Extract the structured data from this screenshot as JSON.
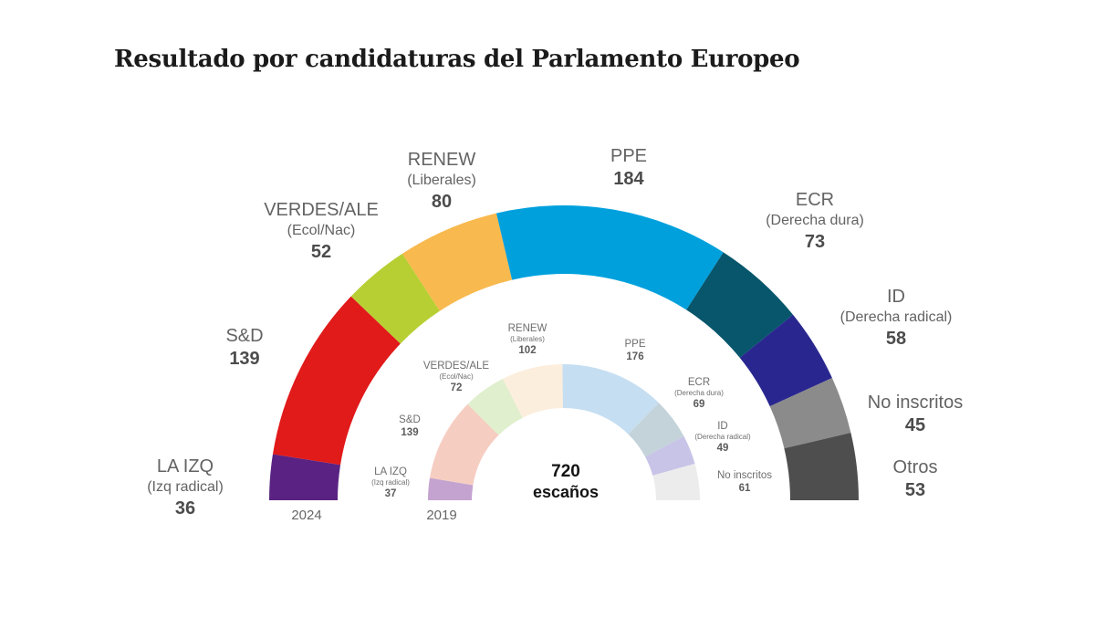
{
  "title": "Resultado por candidaturas del Parlamento Europeo",
  "chart_data": {
    "type": "hemicycle",
    "title": "Resultado por candidaturas del Parlamento Europeo",
    "center_label": {
      "value": "720",
      "unit": "escaños"
    },
    "legend_position": "around-arc",
    "rings": [
      {
        "year": "2024",
        "total": 720,
        "series": [
          {
            "name": "LA IZQ",
            "sub": "(Izq radical)",
            "value": 36,
            "color": "#5a2383"
          },
          {
            "name": "S&D",
            "sub": "",
            "value": 139,
            "color": "#e11a1a"
          },
          {
            "name": "VERDES/ALE",
            "sub": "(Ecol/Nac)",
            "value": 52,
            "color": "#b7cf33"
          },
          {
            "name": "RENEW",
            "sub": "(Liberales)",
            "value": 80,
            "color": "#f8b94e"
          },
          {
            "name": "PPE",
            "sub": "",
            "value": 184,
            "color": "#00a0dd"
          },
          {
            "name": "ECR",
            "sub": "(Derecha dura)",
            "value": 73,
            "color": "#07566c"
          },
          {
            "name": "ID",
            "sub": "(Derecha radical)",
            "value": 58,
            "color": "#29278f"
          },
          {
            "name": "No inscritos",
            "sub": "",
            "value": 45,
            "color": "#8b8b8b"
          },
          {
            "name": "Otros",
            "sub": "",
            "value": 53,
            "color": "#4e4e4e"
          }
        ]
      },
      {
        "year": "2019",
        "total": 705,
        "series": [
          {
            "name": "LA IZQ",
            "sub": "(Izq radical)",
            "value": 37,
            "color": "#c4a3d0"
          },
          {
            "name": "S&D",
            "sub": "",
            "value": 139,
            "color": "#f6cdc1"
          },
          {
            "name": "VERDES/ALE",
            "sub": "(Ecol/Nac)",
            "value": 72,
            "color": "#e0efcd"
          },
          {
            "name": "RENEW",
            "sub": "(Liberales)",
            "value": 102,
            "color": "#fceedd"
          },
          {
            "name": "PPE",
            "sub": "",
            "value": 176,
            "color": "#c6def1"
          },
          {
            "name": "ECR",
            "sub": "(Derecha dura)",
            "value": 69,
            "color": "#c4d3da"
          },
          {
            "name": "ID",
            "sub": "(Derecha radical)",
            "value": 49,
            "color": "#c7c4e7"
          },
          {
            "name": "No inscritos",
            "sub": "",
            "value": 61,
            "color": "#ececec"
          }
        ]
      }
    ]
  }
}
